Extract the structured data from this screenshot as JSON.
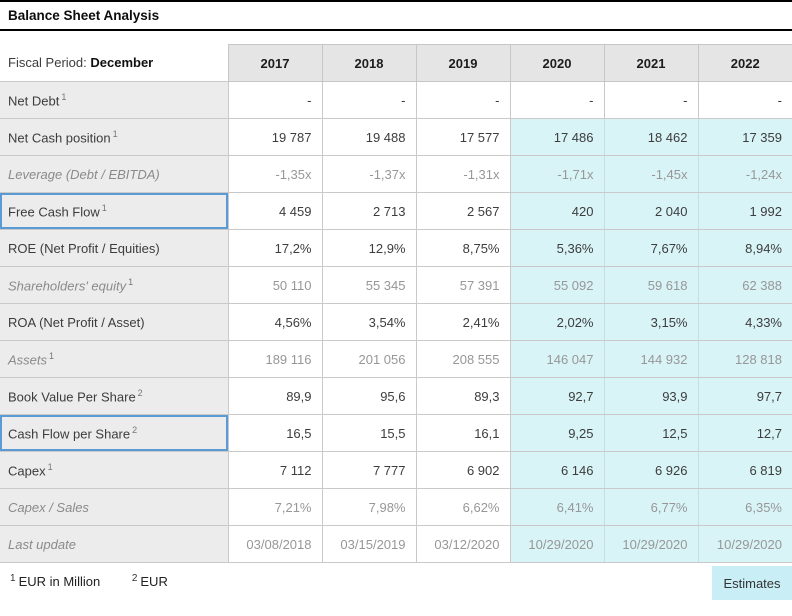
{
  "title": "Balance Sheet Analysis",
  "colors": {
    "title_border": "#000000",
    "header_bg": "#e5e5e5",
    "row_label_bg": "#ececec",
    "grid_border": "#c9c9c9",
    "estimate_bg": "#d8f4f7",
    "highlight_border": "#5b9bd5",
    "badge_bg": "#c9eef5",
    "muted_text": "#979797",
    "normal_text": "#3d3d3d"
  },
  "table": {
    "header": {
      "fiscal_label": "Fiscal Period:",
      "fiscal_value": "December",
      "years": [
        "2017",
        "2018",
        "2019",
        "2020",
        "2021",
        "2022"
      ],
      "estimate_start_index": 3
    },
    "rows": [
      {
        "label": "Net Debt",
        "sup": "1",
        "muted": false,
        "highlight": false,
        "tint": false,
        "values": [
          "-",
          "-",
          "-",
          "-",
          "-",
          "-"
        ]
      },
      {
        "label": "Net Cash position",
        "sup": "1",
        "muted": false,
        "highlight": false,
        "tint": true,
        "values": [
          "19 787",
          "19 488",
          "17 577",
          "17 486",
          "18 462",
          "17 359"
        ]
      },
      {
        "label": "Leverage (Debt / EBITDA)",
        "sup": "",
        "muted": true,
        "highlight": false,
        "tint": true,
        "values": [
          "-1,35x",
          "-1,37x",
          "-1,31x",
          "-1,71x",
          "-1,45x",
          "-1,24x"
        ]
      },
      {
        "label": "Free Cash Flow",
        "sup": "1",
        "muted": false,
        "highlight": true,
        "tint": true,
        "values": [
          "4 459",
          "2 713",
          "2 567",
          "420",
          "2 040",
          "1 992"
        ]
      },
      {
        "label": "ROE (Net Profit / Equities)",
        "sup": "",
        "muted": false,
        "highlight": false,
        "tint": true,
        "values": [
          "17,2%",
          "12,9%",
          "8,75%",
          "5,36%",
          "7,67%",
          "8,94%"
        ]
      },
      {
        "label": "Shareholders' equity",
        "sup": "1",
        "muted": true,
        "highlight": false,
        "tint": true,
        "values": [
          "50 110",
          "55 345",
          "57 391",
          "55 092",
          "59 618",
          "62 388"
        ]
      },
      {
        "label": "ROA (Net Profit / Asset)",
        "sup": "",
        "muted": false,
        "highlight": false,
        "tint": true,
        "values": [
          "4,56%",
          "3,54%",
          "2,41%",
          "2,02%",
          "3,15%",
          "4,33%"
        ]
      },
      {
        "label": "Assets",
        "sup": "1",
        "muted": true,
        "highlight": false,
        "tint": true,
        "values": [
          "189 116",
          "201 056",
          "208 555",
          "146 047",
          "144 932",
          "128 818"
        ]
      },
      {
        "label": "Book Value Per Share",
        "sup": "2",
        "muted": false,
        "highlight": false,
        "tint": true,
        "values": [
          "89,9",
          "95,6",
          "89,3",
          "92,7",
          "93,9",
          "97,7"
        ]
      },
      {
        "label": "Cash Flow per Share",
        "sup": "2",
        "muted": false,
        "highlight": true,
        "tint": true,
        "values": [
          "16,5",
          "15,5",
          "16,1",
          "9,25",
          "12,5",
          "12,7"
        ]
      },
      {
        "label": "Capex",
        "sup": "1",
        "muted": false,
        "highlight": false,
        "tint": true,
        "values": [
          "7 112",
          "7 777",
          "6 902",
          "6 146",
          "6 926",
          "6 819"
        ]
      },
      {
        "label": "Capex / Sales",
        "sup": "",
        "muted": true,
        "highlight": false,
        "tint": true,
        "values": [
          "7,21%",
          "7,98%",
          "6,62%",
          "6,41%",
          "6,77%",
          "6,35%"
        ]
      },
      {
        "label": "Last update",
        "sup": "",
        "muted": true,
        "highlight": false,
        "tint": true,
        "values": [
          "03/08/2018",
          "03/15/2019",
          "03/12/2020",
          "10/29/2020",
          "10/29/2020",
          "10/29/2020"
        ]
      }
    ]
  },
  "footnotes": [
    {
      "sup": "1",
      "text": "EUR in Million"
    },
    {
      "sup": "2",
      "text": "EUR"
    }
  ],
  "estimates_badge": "Estimates"
}
